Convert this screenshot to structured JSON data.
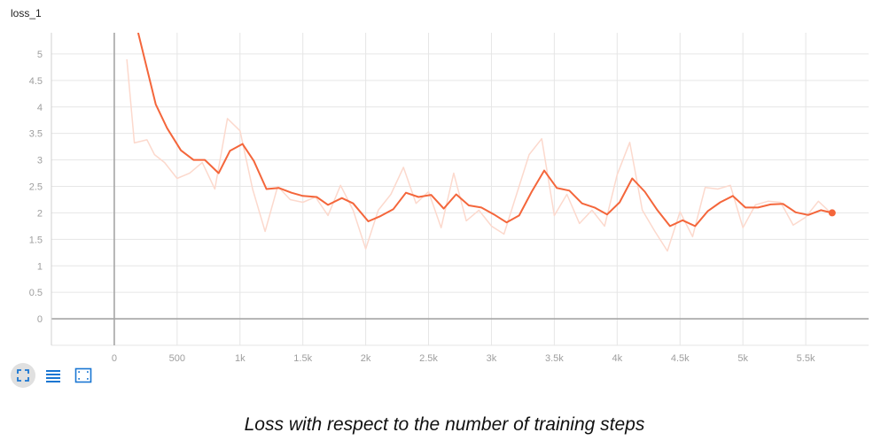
{
  "chart_data": {
    "type": "line",
    "title": "loss_1",
    "caption": "Loss with respect to the number of training steps",
    "xlim": [
      -500,
      6000
    ],
    "ylim": [
      -0.5,
      5.4
    ],
    "x_ticks": [
      0,
      500,
      1000,
      1500,
      2000,
      2500,
      3000,
      3500,
      4000,
      4500,
      5000,
      5500
    ],
    "x_tick_labels": [
      "0",
      "500",
      "1k",
      "1.5k",
      "2k",
      "2.5k",
      "3k",
      "3.5k",
      "4k",
      "4.5k",
      "5k",
      "5.5k"
    ],
    "y_ticks": [
      0,
      0.5,
      1,
      1.5,
      2,
      2.5,
      3,
      3.5,
      4,
      4.5,
      5
    ],
    "y_tick_labels": [
      "0",
      "0.5",
      "1",
      "1.5",
      "2",
      "2.5",
      "3",
      "3.5",
      "4",
      "4.5",
      "5"
    ],
    "grid": true,
    "series": [
      {
        "role": "raw",
        "color": "#fcd9cd",
        "x": [
          100,
          160,
          260,
          320,
          400,
          500,
          600,
          700,
          800,
          900,
          1000,
          1100,
          1200,
          1300,
          1400,
          1500,
          1600,
          1700,
          1800,
          1900,
          2000,
          2100,
          2200,
          2300,
          2400,
          2500,
          2600,
          2700,
          2800,
          2900,
          3000,
          3100,
          3200,
          3300,
          3400,
          3500,
          3600,
          3700,
          3800,
          3900,
          4000,
          4100,
          4200,
          4300,
          4400,
          4500,
          4600,
          4700,
          4800,
          4900,
          5000,
          5100,
          5200,
          5300,
          5400,
          5500,
          5600,
          5700
        ],
        "y": [
          4.9,
          3.32,
          3.38,
          3.1,
          2.95,
          2.65,
          2.75,
          2.95,
          2.45,
          3.78,
          3.55,
          2.45,
          1.65,
          2.5,
          2.25,
          2.2,
          2.3,
          1.95,
          2.52,
          2.05,
          1.32,
          2.05,
          2.35,
          2.86,
          2.18,
          2.4,
          1.72,
          2.75,
          1.85,
          2.05,
          1.75,
          1.6,
          2.35,
          3.1,
          3.4,
          1.95,
          2.35,
          1.8,
          2.05,
          1.75,
          2.72,
          3.33,
          2.05,
          1.65,
          1.28,
          2.02,
          1.55,
          2.48,
          2.45,
          2.52,
          1.72,
          2.15,
          2.22,
          2.2,
          1.77,
          1.92,
          2.22,
          2.0
        ]
      },
      {
        "role": "smoothed",
        "color": "#f4663b",
        "x": [
          190,
          330,
          420,
          530,
          630,
          720,
          830,
          920,
          1020,
          1110,
          1210,
          1310,
          1410,
          1500,
          1610,
          1700,
          1810,
          1900,
          2020,
          2110,
          2220,
          2320,
          2420,
          2520,
          2620,
          2720,
          2820,
          2920,
          3020,
          3120,
          3220,
          3320,
          3420,
          3520,
          3620,
          3720,
          3820,
          3920,
          4020,
          4120,
          4220,
          4320,
          4420,
          4520,
          4620,
          4720,
          4820,
          4920,
          5020,
          5120,
          5220,
          5320,
          5420,
          5520,
          5620,
          5710
        ],
        "y": [
          5.4,
          4.05,
          3.6,
          3.18,
          3.0,
          3.0,
          2.75,
          3.17,
          3.3,
          2.98,
          2.45,
          2.47,
          2.38,
          2.32,
          2.3,
          2.15,
          2.28,
          2.18,
          1.84,
          1.93,
          2.07,
          2.38,
          2.3,
          2.34,
          2.08,
          2.35,
          2.14,
          2.1,
          1.97,
          1.82,
          1.95,
          2.4,
          2.8,
          2.47,
          2.42,
          2.18,
          2.1,
          1.97,
          2.2,
          2.65,
          2.4,
          2.05,
          1.75,
          1.86,
          1.75,
          2.03,
          2.2,
          2.32,
          2.1,
          2.1,
          2.16,
          2.17,
          2.01,
          1.96,
          2.05,
          2.0
        ]
      }
    ]
  },
  "toolbar": {
    "icons": [
      "expand-icon",
      "list-icon",
      "fit-domain-icon"
    ]
  }
}
